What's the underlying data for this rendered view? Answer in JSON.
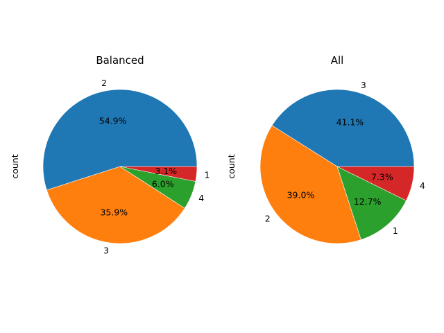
{
  "chart_data": [
    {
      "type": "pie",
      "title": "Balanced",
      "ylabel": "count",
      "slices": [
        {
          "label": "2",
          "value": 54.9,
          "pct_label": "54.9%",
          "color": "#1f77b4"
        },
        {
          "label": "3",
          "value": 35.9,
          "pct_label": "35.9%",
          "color": "#ff7f0e"
        },
        {
          "label": "4",
          "value": 6.0,
          "pct_label": "6.0%",
          "color": "#2ca02c"
        },
        {
          "label": "1",
          "value": 3.1,
          "pct_label": "3.1%",
          "color": "#d62728"
        }
      ]
    },
    {
      "type": "pie",
      "title": "All",
      "ylabel": "count",
      "slices": [
        {
          "label": "3",
          "value": 41.1,
          "pct_label": "41.1%",
          "color": "#1f77b4"
        },
        {
          "label": "2",
          "value": 39.0,
          "pct_label": "39.0%",
          "color": "#ff7f0e"
        },
        {
          "label": "1",
          "value": 12.7,
          "pct_label": "12.7%",
          "color": "#2ca02c"
        },
        {
          "label": "4",
          "value": 7.3,
          "pct_label": "7.3%",
          "color": "#d62728"
        }
      ]
    }
  ]
}
